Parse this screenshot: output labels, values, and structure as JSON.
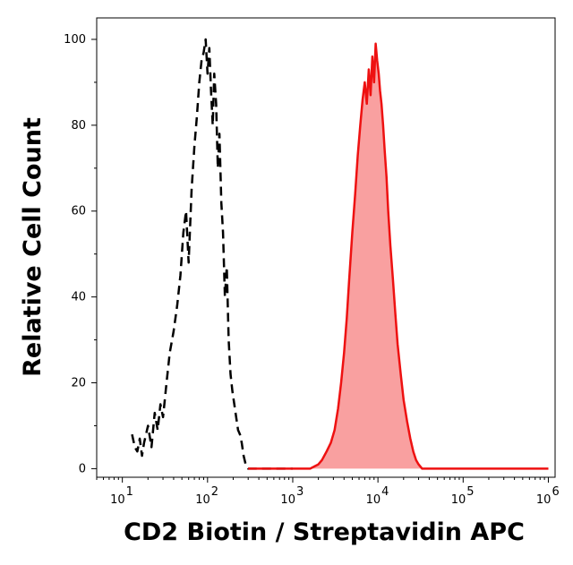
{
  "chart_data": {
    "type": "area",
    "title": "",
    "xlabel": "CD2 Biotin / Streptavidin APC",
    "ylabel": "Relative Cell Count",
    "x_scale": "log",
    "xlim": [
      5,
      1200000
    ],
    "ylim": [
      -2,
      105
    ],
    "x_ticks": [
      {
        "value": 10,
        "base": "10",
        "exp": "1"
      },
      {
        "value": 100,
        "base": "10",
        "exp": "2"
      },
      {
        "value": 1000,
        "base": "10",
        "exp": "3"
      },
      {
        "value": 10000,
        "base": "10",
        "exp": "4"
      },
      {
        "value": 100000,
        "base": "10",
        "exp": "5"
      },
      {
        "value": 1000000,
        "base": "10",
        "exp": "6"
      }
    ],
    "y_ticks": [
      0,
      20,
      40,
      60,
      80,
      100
    ],
    "grid": false,
    "series": [
      {
        "style": "dashed-black-line",
        "color": "#000000",
        "x": [
          13,
          14,
          15,
          16,
          17,
          18,
          20,
          22,
          24,
          26,
          28,
          30,
          33,
          36,
          40,
          44,
          48,
          52,
          56,
          60,
          65,
          70,
          75,
          80,
          85,
          90,
          95,
          100,
          105,
          110,
          115,
          120,
          126,
          132,
          138,
          145,
          152,
          160,
          168,
          177,
          186,
          196,
          206,
          217,
          228,
          240,
          252,
          265,
          280,
          300,
          330,
          400,
          600,
          1000
        ],
        "y": [
          8,
          5,
          4,
          7,
          3,
          6,
          10,
          5,
          13,
          9,
          15,
          12,
          20,
          27,
          32,
          38,
          45,
          55,
          60,
          48,
          65,
          75,
          82,
          90,
          95,
          97,
          100,
          92,
          98,
          88,
          80,
          92,
          85,
          70,
          78,
          62,
          55,
          40,
          47,
          30,
          22,
          18,
          15,
          12,
          9,
          8,
          6,
          3,
          1,
          0,
          0,
          0,
          0,
          0
        ]
      },
      {
        "style": "filled-red-area",
        "color": "#ee1111",
        "fill": "#f9a0a0",
        "x": [
          300,
          1000,
          1600,
          2000,
          2200,
          2500,
          2800,
          3100,
          3400,
          3700,
          4000,
          4300,
          4600,
          5000,
          5400,
          5800,
          6200,
          6600,
          7000,
          7400,
          7800,
          8200,
          8600,
          9000,
          9400,
          9800,
          10200,
          10600,
          11000,
          11500,
          12000,
          12600,
          13200,
          14000,
          15000,
          16000,
          17000,
          18500,
          20000,
          22000,
          24000,
          26000,
          28000,
          30000,
          33000,
          40000,
          100000,
          1000000
        ],
        "y": [
          0,
          0,
          0,
          1,
          2,
          4,
          6,
          9,
          14,
          20,
          27,
          35,
          44,
          55,
          64,
          73,
          80,
          86,
          90,
          85,
          93,
          87,
          96,
          90,
          99,
          95,
          92,
          88,
          85,
          80,
          74,
          68,
          60,
          52,
          44,
          36,
          29,
          22,
          16,
          11,
          7,
          4,
          2,
          1,
          0,
          0,
          0,
          0
        ]
      }
    ]
  }
}
